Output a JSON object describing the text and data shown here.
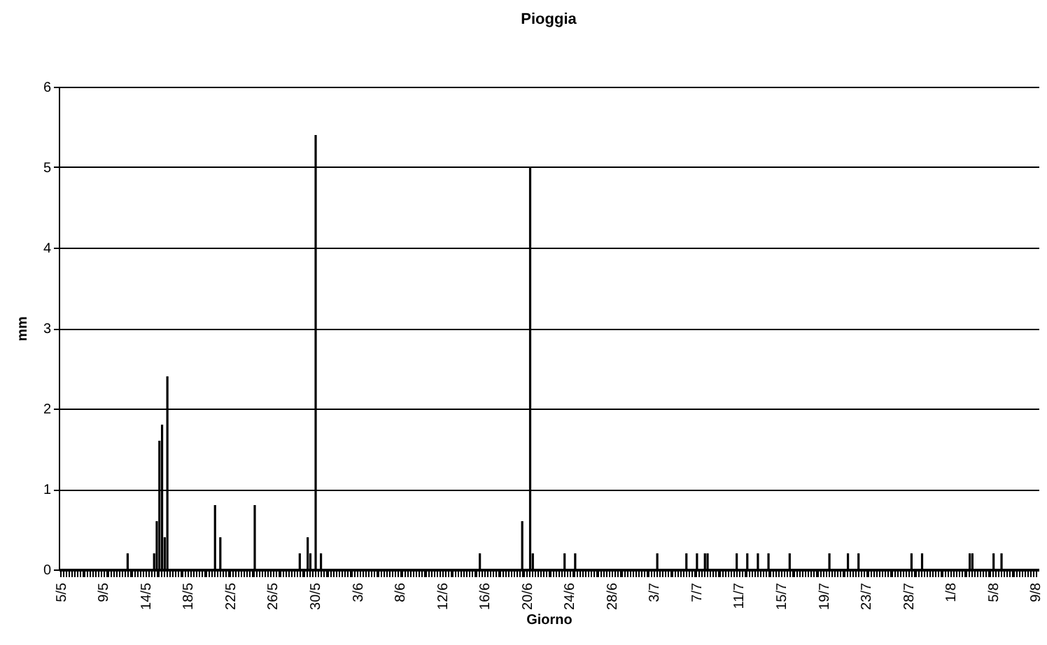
{
  "chart_data": {
    "type": "bar",
    "title": "Pioggia",
    "xlabel": "Giorno",
    "ylabel": "mm",
    "color": "#000000",
    "ylim": [
      0,
      6
    ],
    "yticks": [
      0,
      1,
      2,
      3,
      4,
      5,
      6
    ],
    "grid": "y",
    "categories": [
      "5/5",
      null,
      null,
      null,
      null,
      null,
      null,
      null,
      null,
      null,
      null,
      null,
      null,
      null,
      null,
      null,
      "9/5",
      null,
      null,
      null,
      null,
      null,
      null,
      null,
      null,
      null,
      null,
      null,
      null,
      null,
      null,
      null,
      "14/5",
      null,
      null,
      null,
      null,
      null,
      null,
      null,
      null,
      null,
      null,
      null,
      null,
      null,
      null,
      null,
      "18/5",
      null,
      null,
      null,
      null,
      null,
      null,
      null,
      null,
      null,
      null,
      null,
      null,
      null,
      null,
      null,
      "22/5",
      null,
      null,
      null,
      null,
      null,
      null,
      null,
      null,
      null,
      null,
      null,
      null,
      null,
      null,
      null,
      "26/5",
      null,
      null,
      null,
      null,
      null,
      null,
      null,
      null,
      null,
      null,
      null,
      null,
      null,
      null,
      null,
      "30/5",
      null,
      null,
      null,
      null,
      null,
      null,
      null,
      null,
      null,
      null,
      null,
      null,
      null,
      null,
      null,
      "3/6",
      null,
      null,
      null,
      null,
      null,
      null,
      null,
      null,
      null,
      null,
      null,
      null,
      null,
      null,
      null,
      "8/6",
      null,
      null,
      null,
      null,
      null,
      null,
      null,
      null,
      null,
      null,
      null,
      null,
      null,
      null,
      null,
      "12/6",
      null,
      null,
      null,
      null,
      null,
      null,
      null,
      null,
      null,
      null,
      null,
      null,
      null,
      null,
      null,
      "16/6",
      null,
      null,
      null,
      null,
      null,
      null,
      null,
      null,
      null,
      null,
      null,
      null,
      null,
      null,
      null,
      "20/6",
      null,
      null,
      null,
      null,
      null,
      null,
      null,
      null,
      null,
      null,
      null,
      null,
      null,
      null,
      null,
      "24/6",
      null,
      null,
      null,
      null,
      null,
      null,
      null,
      null,
      null,
      null,
      null,
      null,
      null,
      null,
      null,
      "28/6",
      null,
      null,
      null,
      null,
      null,
      null,
      null,
      null,
      null,
      null,
      null,
      null,
      null,
      null,
      null,
      "3/7",
      null,
      null,
      null,
      null,
      null,
      null,
      null,
      null,
      null,
      null,
      null,
      null,
      null,
      null,
      null,
      "7/7",
      null,
      null,
      null,
      null,
      null,
      null,
      null,
      null,
      null,
      null,
      null,
      null,
      null,
      null,
      null,
      "11/7",
      null,
      null,
      null,
      null,
      null,
      null,
      null,
      null,
      null,
      null,
      null,
      null,
      null,
      null,
      null,
      "15/7",
      null,
      null,
      null,
      null,
      null,
      null,
      null,
      null,
      null,
      null,
      null,
      null,
      null,
      null,
      null,
      "19/7",
      null,
      null,
      null,
      null,
      null,
      null,
      null,
      null,
      null,
      null,
      null,
      null,
      null,
      null,
      null,
      "23/7",
      null,
      null,
      null,
      null,
      null,
      null,
      null,
      null,
      null,
      null,
      null,
      null,
      null,
      null,
      null,
      "28/7",
      null,
      null,
      null,
      null,
      null,
      null,
      null,
      null,
      null,
      null,
      null,
      null,
      null,
      null,
      null,
      "1/8",
      null,
      null,
      null,
      null,
      null,
      null,
      null,
      null,
      null,
      null,
      null,
      null,
      null,
      null,
      null,
      "5/8",
      null,
      null,
      null,
      null,
      null,
      null,
      null,
      null,
      null,
      null,
      null,
      null,
      null,
      null,
      null,
      "9/8"
    ],
    "values": [
      0,
      0,
      0,
      0,
      0,
      0,
      0,
      0,
      0,
      0,
      0,
      0,
      0,
      0,
      0,
      0,
      0,
      0,
      0,
      0,
      0,
      0,
      0,
      0,
      0,
      0.2,
      0,
      0,
      0,
      0,
      0,
      0,
      0,
      0,
      0,
      0.2,
      0.6,
      1.6,
      1.8,
      0.4,
      2.4,
      0,
      0,
      0,
      0,
      0,
      0,
      0,
      0,
      0,
      0,
      0,
      0,
      0,
      0,
      0,
      0,
      0,
      0.8,
      0,
      0.4,
      0,
      0,
      0,
      0,
      0,
      0,
      0,
      0,
      0,
      0,
      0,
      0,
      0.8,
      0,
      0,
      0,
      0,
      0,
      0,
      0,
      0,
      0,
      0,
      0,
      0,
      0,
      0,
      0,
      0,
      0.2,
      0,
      0,
      0.4,
      0.2,
      0,
      5.4,
      0,
      0.2,
      0,
      0,
      0,
      0,
      0,
      0,
      0,
      0,
      0,
      0,
      0,
      0,
      0,
      0,
      0,
      0,
      0,
      0,
      0,
      0,
      0,
      0,
      0,
      0,
      0,
      0,
      0,
      0,
      0,
      0,
      0,
      0,
      0,
      0,
      0,
      0,
      0,
      0,
      0,
      0,
      0,
      0,
      0,
      0,
      0,
      0,
      0,
      0,
      0,
      0,
      0,
      0,
      0,
      0,
      0,
      0,
      0,
      0,
      0,
      0.2,
      0,
      0,
      0,
      0,
      0,
      0,
      0,
      0,
      0,
      0,
      0,
      0,
      0,
      0,
      0,
      0.6,
      0,
      0,
      5,
      0.2,
      0,
      0,
      0,
      0,
      0,
      0,
      0,
      0,
      0,
      0,
      0,
      0.2,
      0,
      0,
      0,
      0.2,
      0,
      0,
      0,
      0,
      0,
      0,
      0,
      0,
      0,
      0,
      0,
      0,
      0,
      0,
      0,
      0,
      0,
      0,
      0,
      0,
      0,
      0,
      0,
      0,
      0,
      0,
      0,
      0,
      0,
      0,
      0.2,
      0,
      0,
      0,
      0,
      0,
      0,
      0,
      0,
      0,
      0,
      0.2,
      0,
      0,
      0,
      0.2,
      0,
      0,
      0.2,
      0.2,
      0,
      0,
      0,
      0,
      0,
      0,
      0,
      0,
      0,
      0,
      0.2,
      0,
      0,
      0,
      0.2,
      0,
      0,
      0,
      0.2,
      0,
      0,
      0,
      0.2,
      0,
      0,
      0,
      0,
      0,
      0,
      0,
      0.2,
      0,
      0,
      0,
      0,
      0,
      0,
      0,
      0,
      0,
      0,
      0,
      0,
      0,
      0,
      0.2,
      0,
      0,
      0,
      0,
      0,
      0,
      0.2,
      0,
      0,
      0,
      0.2,
      0,
      0,
      0,
      0,
      0,
      0,
      0,
      0,
      0,
      0,
      0,
      0,
      0,
      0,
      0,
      0,
      0,
      0,
      0,
      0.2,
      0,
      0,
      0,
      0.2,
      0,
      0,
      0,
      0,
      0,
      0,
      0,
      0,
      0,
      0,
      0,
      0,
      0,
      0,
      0,
      0,
      0,
      0.2,
      0.2,
      0,
      0,
      0,
      0,
      0,
      0,
      0,
      0.2,
      0,
      0,
      0.2,
      0,
      0,
      0,
      0,
      0,
      0,
      0,
      0,
      0,
      0,
      0,
      0,
      0
    ]
  }
}
